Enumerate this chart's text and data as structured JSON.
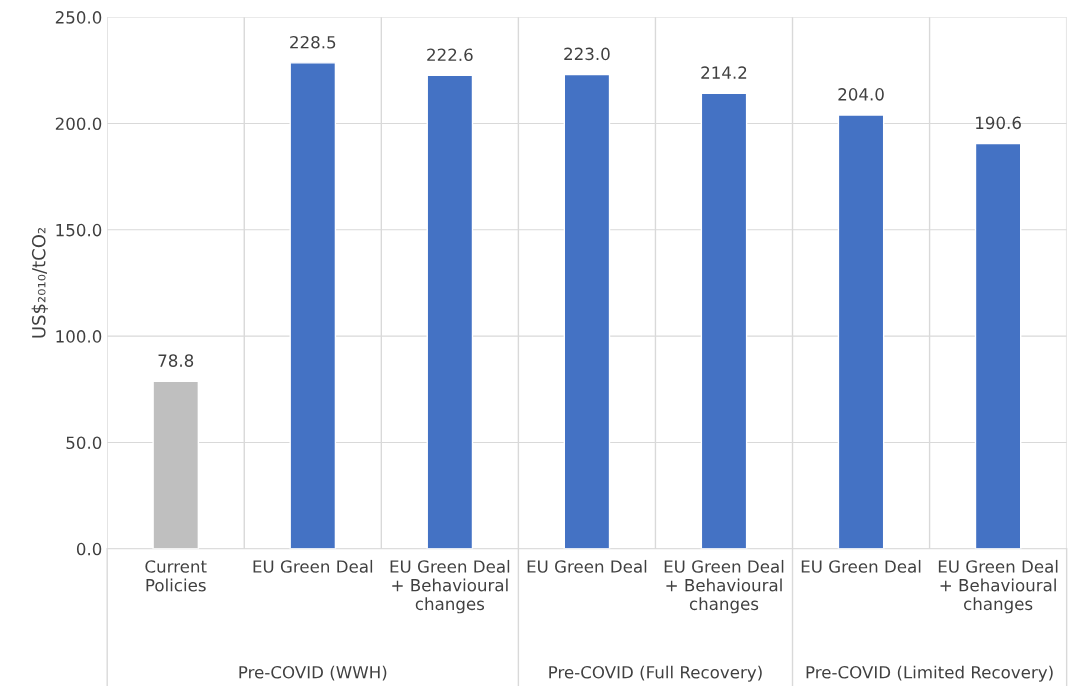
{
  "chart_data": {
    "type": "bar",
    "ylabel": "US$₂₀₁₀/tCO₂",
    "categories": [
      "Current\nPolicies",
      "EU Green Deal",
      "EU Green Deal\n+ Behavioural\nchanges",
      "EU Green Deal",
      "EU Green Deal\n+ Behavioural\nchanges",
      "EU Green Deal",
      "EU Green Deal\n+ Behavioural\nchanges"
    ],
    "values": [
      78.8,
      228.5,
      222.6,
      223.0,
      214.2,
      204.0,
      190.6
    ],
    "value_labels": [
      "78.8",
      "228.5",
      "222.6",
      "223.0",
      "214.2",
      "204.0",
      "190.6"
    ],
    "colors": [
      "#bfbfbf",
      "#4472c4",
      "#4472c4",
      "#4472c4",
      "#4472c4",
      "#4472c4",
      "#4472c4"
    ],
    "ylim": [
      0,
      250
    ],
    "yticks": [
      {
        "value": 0,
        "label": "0.0"
      },
      {
        "value": 50,
        "label": "50.0"
      },
      {
        "value": 100,
        "label": "100.0"
      },
      {
        "value": 150,
        "label": "150.0"
      },
      {
        "value": 200,
        "label": "200.0"
      },
      {
        "value": 250,
        "label": "250.0"
      }
    ],
    "grid": true,
    "annotations": [
      "Pre-COVID (WWH)",
      "Pre-COVID (Full Recovery)",
      "Pre-COVID (Limited Recovery)"
    ]
  }
}
